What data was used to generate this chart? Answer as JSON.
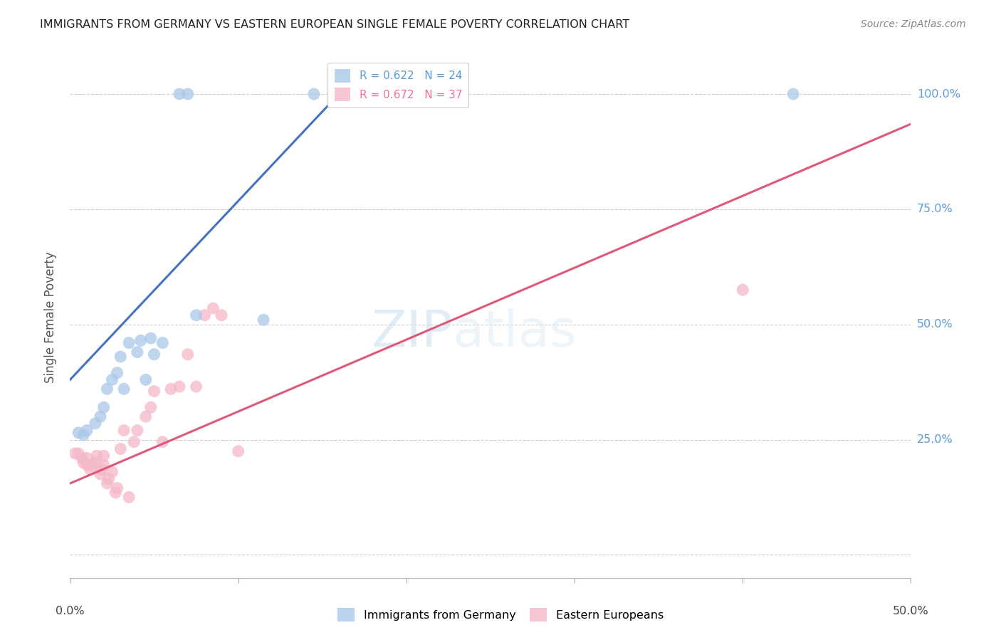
{
  "title": "IMMIGRANTS FROM GERMANY VS EASTERN EUROPEAN SINGLE FEMALE POVERTY CORRELATION CHART",
  "source": "Source: ZipAtlas.com",
  "ylabel": "Single Female Poverty",
  "y_ticks": [
    0.0,
    0.25,
    0.5,
    0.75,
    1.0
  ],
  "y_tick_labels": [
    "",
    "25.0%",
    "50.0%",
    "75.0%",
    "100.0%"
  ],
  "x_lim": [
    0.0,
    0.5
  ],
  "y_lim": [
    -0.05,
    1.08
  ],
  "legend_entries": [
    {
      "label": "R = 0.622   N = 24",
      "color": "#5b9bd5"
    },
    {
      "label": "R = 0.672   N = 37",
      "color": "#f07090"
    }
  ],
  "watermark": "ZIPatlas",
  "germany_color": "#a8c8e8",
  "eastern_color": "#f4b8c8",
  "germany_line_color": "#4472c4",
  "eastern_line_color": "#e05878",
  "background_color": "#ffffff",
  "germany_scatter": [
    [
      0.005,
      0.265
    ],
    [
      0.008,
      0.26
    ],
    [
      0.01,
      0.27
    ],
    [
      0.015,
      0.285
    ],
    [
      0.018,
      0.3
    ],
    [
      0.02,
      0.32
    ],
    [
      0.022,
      0.36
    ],
    [
      0.025,
      0.38
    ],
    [
      0.028,
      0.395
    ],
    [
      0.03,
      0.43
    ],
    [
      0.032,
      0.36
    ],
    [
      0.035,
      0.46
    ],
    [
      0.04,
      0.44
    ],
    [
      0.042,
      0.465
    ],
    [
      0.045,
      0.38
    ],
    [
      0.048,
      0.47
    ],
    [
      0.05,
      0.435
    ],
    [
      0.055,
      0.46
    ],
    [
      0.065,
      1.0
    ],
    [
      0.07,
      1.0
    ],
    [
      0.075,
      0.52
    ],
    [
      0.115,
      0.51
    ],
    [
      0.145,
      1.0
    ],
    [
      0.43,
      1.0
    ]
  ],
  "eastern_scatter": [
    [
      0.003,
      0.22
    ],
    [
      0.005,
      0.22
    ],
    [
      0.007,
      0.21
    ],
    [
      0.008,
      0.2
    ],
    [
      0.01,
      0.195
    ],
    [
      0.01,
      0.21
    ],
    [
      0.012,
      0.185
    ],
    [
      0.013,
      0.195
    ],
    [
      0.015,
      0.2
    ],
    [
      0.016,
      0.215
    ],
    [
      0.018,
      0.175
    ],
    [
      0.019,
      0.185
    ],
    [
      0.02,
      0.195
    ],
    [
      0.02,
      0.215
    ],
    [
      0.022,
      0.155
    ],
    [
      0.023,
      0.165
    ],
    [
      0.025,
      0.18
    ],
    [
      0.027,
      0.135
    ],
    [
      0.028,
      0.145
    ],
    [
      0.03,
      0.23
    ],
    [
      0.032,
      0.27
    ],
    [
      0.035,
      0.125
    ],
    [
      0.038,
      0.245
    ],
    [
      0.04,
      0.27
    ],
    [
      0.045,
      0.3
    ],
    [
      0.048,
      0.32
    ],
    [
      0.05,
      0.355
    ],
    [
      0.055,
      0.245
    ],
    [
      0.06,
      0.36
    ],
    [
      0.065,
      0.365
    ],
    [
      0.07,
      0.435
    ],
    [
      0.075,
      0.365
    ],
    [
      0.08,
      0.52
    ],
    [
      0.085,
      0.535
    ],
    [
      0.09,
      0.52
    ],
    [
      0.1,
      0.225
    ],
    [
      0.4,
      0.575
    ]
  ],
  "germany_line_x": [
    0.0,
    0.165
  ],
  "germany_line_y": [
    0.38,
    1.02
  ],
  "eastern_line_x": [
    0.0,
    0.5
  ],
  "eastern_line_y": [
    0.155,
    0.935
  ]
}
